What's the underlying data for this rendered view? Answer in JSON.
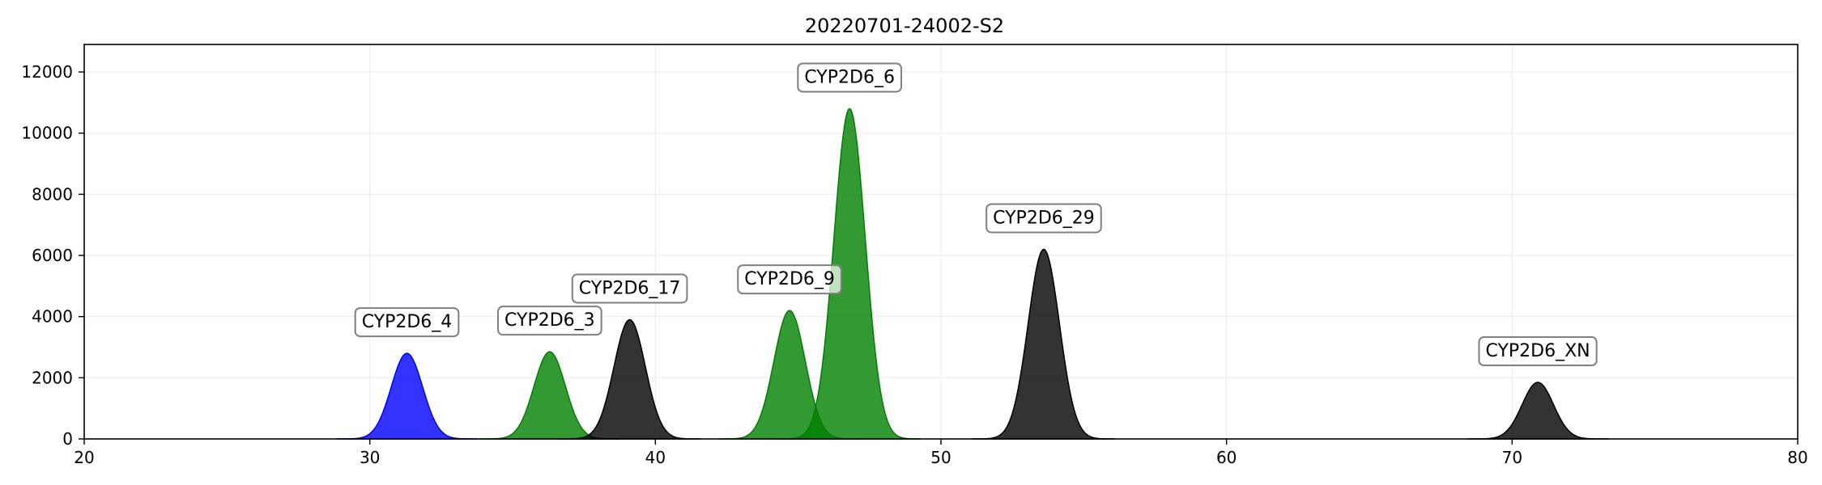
{
  "chart_data": {
    "type": "area",
    "title": "20220701-24002-S2",
    "xlabel": "",
    "ylabel": "",
    "xlim": [
      20,
      80
    ],
    "ylim": [
      0,
      12900
    ],
    "grid": true,
    "x_ticks": [
      20,
      30,
      40,
      50,
      60,
      70,
      80
    ],
    "y_ticks": [
      0,
      2000,
      4000,
      6000,
      8000,
      10000,
      12000
    ],
    "peaks": [
      {
        "label": "CYP2D6_4",
        "center": 31.3,
        "height": 2800,
        "sigma": 0.55,
        "color": "#0000ff"
      },
      {
        "label": "CYP2D6_3",
        "center": 36.3,
        "height": 2850,
        "sigma": 0.55,
        "color": "#008000"
      },
      {
        "label": "CYP2D6_17",
        "center": 39.1,
        "height": 3900,
        "sigma": 0.55,
        "color": "#000000"
      },
      {
        "label": "CYP2D6_9",
        "center": 44.7,
        "height": 4200,
        "sigma": 0.55,
        "color": "#008000"
      },
      {
        "label": "CYP2D6_6",
        "center": 46.8,
        "height": 10800,
        "sigma": 0.55,
        "color": "#008000"
      },
      {
        "label": "CYP2D6_29",
        "center": 53.6,
        "height": 6200,
        "sigma": 0.55,
        "color": "#000000"
      },
      {
        "label": "CYP2D6_XN",
        "center": 70.9,
        "height": 1850,
        "sigma": 0.55,
        "color": "#000000"
      }
    ]
  }
}
